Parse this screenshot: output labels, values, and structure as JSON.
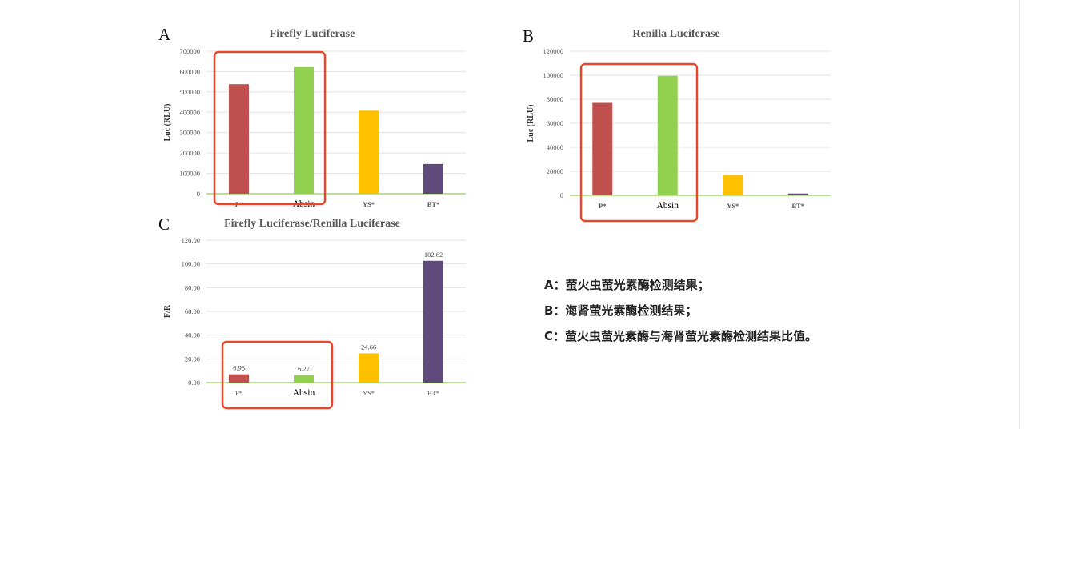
{
  "colors": {
    "P*": "#c0504d",
    "Absin": "#92d050",
    "YS*": "#ffc000",
    "BT*": "#604a7b",
    "highlight": "#e8472b",
    "axis": "#8fd14f",
    "grid": "#e3e3e3"
  },
  "panels": {
    "a": "A",
    "b": "B",
    "c": "C"
  },
  "captions": [
    "A：萤火虫萤光素酶检测结果；",
    "B：海肾萤光素酶检测结果；",
    "C：萤火虫萤光素酶与海肾萤光素酶检测结果比值。"
  ],
  "chart_data": [
    {
      "id": "A",
      "type": "bar",
      "title": "Firefly Luciferase",
      "ylabel": "Luc (RLU)",
      "categories": [
        "P*",
        "Absin",
        "YS*",
        "BT*"
      ],
      "values": [
        538000,
        622000,
        408000,
        146000
      ],
      "ylim": [
        0,
        700000
      ],
      "yticks": [
        "0",
        "100000",
        "200000",
        "300000",
        "400000",
        "500000",
        "600000",
        "700000"
      ],
      "grid": true,
      "highlighted_categories": [
        "P*",
        "Absin"
      ]
    },
    {
      "id": "B",
      "type": "bar",
      "title": "Renilla Luciferase",
      "ylabel": "Luc (RLU)",
      "categories": [
        "P*",
        "Absin",
        "YS*",
        "BT*"
      ],
      "values": [
        77000,
        99500,
        17000,
        1500
      ],
      "ylim": [
        0,
        120000
      ],
      "yticks": [
        "0",
        "20000",
        "40000",
        "60000",
        "80000",
        "100000",
        "120000"
      ],
      "grid": true,
      "highlighted_categories": [
        "P*",
        "Absin"
      ]
    },
    {
      "id": "C",
      "type": "bar",
      "title": "Firefly Luciferase/Renilla Luciferase",
      "ylabel": "F/R",
      "categories": [
        "P*",
        "Absin",
        "YS*",
        "BT*"
      ],
      "values": [
        6.98,
        6.27,
        24.66,
        102.62
      ],
      "data_labels": [
        "6.98",
        "6.27",
        "24.66",
        "102.62"
      ],
      "ylim": [
        0,
        120
      ],
      "yticks": [
        "0.00",
        "20.00",
        "40.00",
        "60.00",
        "80.00",
        "100.00",
        "120.00"
      ],
      "grid": true,
      "highlighted_categories": [
        "P*",
        "Absin"
      ]
    }
  ]
}
